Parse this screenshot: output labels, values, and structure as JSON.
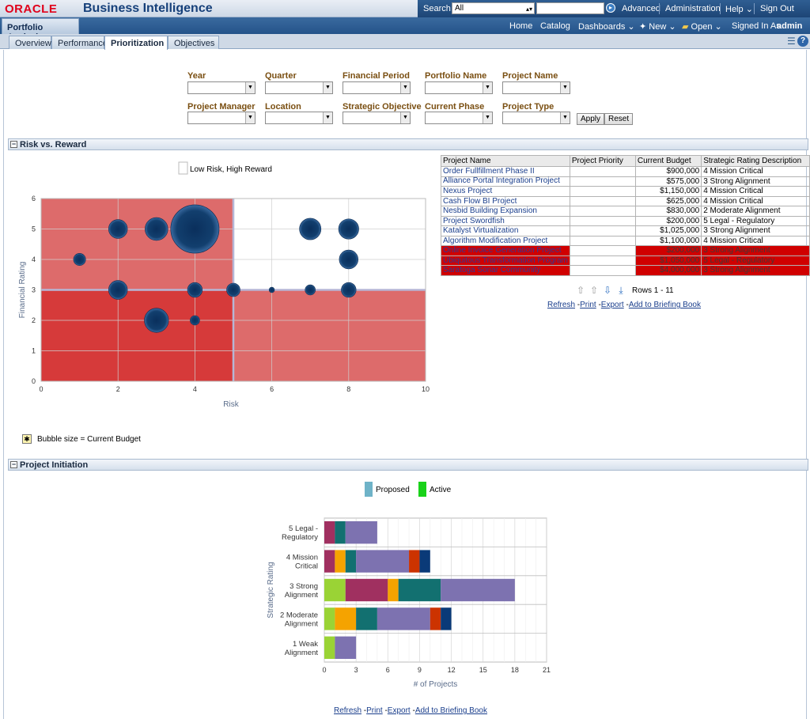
{
  "header": {
    "oracle_logo": "ORACLE",
    "app_title": "Business Intelligence",
    "search_label": "Search",
    "search_scope": "All",
    "search_value": "",
    "links": [
      "Advanced",
      "Administration",
      "Help",
      "Sign Out"
    ]
  },
  "navbar": {
    "dashboard_name": "Portfolio Analysis",
    "home": "Home",
    "catalog": "Catalog",
    "dashboards": "Dashboards",
    "new": "New",
    "open": "Open",
    "signed_in_as": "Signed In As",
    "user": "admin"
  },
  "tabs": [
    "Overview",
    "Performance",
    "Prioritization",
    "Objectives"
  ],
  "active_tab": "Prioritization",
  "prompts": {
    "row1": [
      "Year",
      "Quarter",
      "Financial Period",
      "Portfolio Name",
      "Project Name"
    ],
    "row2": [
      "Project Manager",
      "Location",
      "Strategic Objective",
      "Current Phase",
      "Project Type"
    ],
    "apply": "Apply",
    "reset": "Reset"
  },
  "section1": {
    "title": "Risk vs. Reward",
    "bubble_note": "Bubble size = Current Budget"
  },
  "section2": {
    "title": "Project Initiation"
  },
  "chart_data": [
    {
      "type": "scatter",
      "subtype": "bubble",
      "xlabel": "Risk",
      "ylabel": "Financial Rating",
      "xlim": [
        0,
        10
      ],
      "ylim": [
        0,
        6
      ],
      "xticks": [
        0,
        2,
        4,
        6,
        8,
        10
      ],
      "yticks": [
        0,
        1,
        2,
        3,
        4,
        5,
        6
      ],
      "legend": [
        {
          "name": "Low Risk, High Reward",
          "color": "#ffffff"
        }
      ],
      "quadrant_split": {
        "x": 5,
        "y": 3
      },
      "quadrant_colors": {
        "high_risk": "#dd6b6b",
        "low_risk_low_reward": "#d63a3a",
        "low_risk_high_reward": "#ffffff"
      },
      "bubble_color": "#123f6e",
      "points": [
        {
          "x": 2,
          "y": 5,
          "size": 0.7
        },
        {
          "x": 3,
          "y": 5,
          "size": 0.85
        },
        {
          "x": 4,
          "y": 5,
          "size": 1.8
        },
        {
          "x": 1,
          "y": 4,
          "size": 0.45
        },
        {
          "x": 2,
          "y": 3,
          "size": 0.7
        },
        {
          "x": 4,
          "y": 3,
          "size": 0.55
        },
        {
          "x": 5,
          "y": 3,
          "size": 0.5
        },
        {
          "x": 3,
          "y": 2,
          "size": 0.9
        },
        {
          "x": 4,
          "y": 2,
          "size": 0.35
        },
        {
          "x": 6,
          "y": 3,
          "size": 0.2
        },
        {
          "x": 7,
          "y": 3,
          "size": 0.38
        },
        {
          "x": 7,
          "y": 5,
          "size": 0.8
        },
        {
          "x": 8,
          "y": 5,
          "size": 0.75
        },
        {
          "x": 8,
          "y": 4,
          "size": 0.7
        },
        {
          "x": 8,
          "y": 3,
          "size": 0.55
        }
      ]
    },
    {
      "type": "bar",
      "orientation": "horizontal",
      "stacked": true,
      "xlabel": "# of Projects",
      "ylabel": "Strategic Rating",
      "xlim": [
        0,
        21
      ],
      "xticks": [
        0,
        3,
        6,
        9,
        12,
        15,
        18,
        21
      ],
      "legend": [
        {
          "name": "Proposed",
          "color": "#6fb3c8"
        },
        {
          "name": "Active",
          "color": "#19d219"
        }
      ],
      "categories": [
        "5 Legal - Regulatory",
        "4 Mission Critical",
        "3 Strong Alignment",
        "2 Moderate Alignment",
        "1 Weak Alignment"
      ],
      "segments": [
        [
          {
            "value": 1,
            "color": "#a03060"
          },
          {
            "value": 1,
            "color": "#127070"
          },
          {
            "value": 3,
            "color": "#7d72b0"
          }
        ],
        [
          {
            "value": 1,
            "color": "#a03060"
          },
          {
            "value": 1,
            "color": "#f5a300"
          },
          {
            "value": 1,
            "color": "#127070"
          },
          {
            "value": 5,
            "color": "#7d72b0"
          },
          {
            "value": 1,
            "color": "#cc3300"
          },
          {
            "value": 1,
            "color": "#0a3a78"
          }
        ],
        [
          {
            "value": 2,
            "color": "#9ad335"
          },
          {
            "value": 4,
            "color": "#a03060"
          },
          {
            "value": 1,
            "color": "#f5a300"
          },
          {
            "value": 4,
            "color": "#127070"
          },
          {
            "value": 7,
            "color": "#7d72b0"
          }
        ],
        [
          {
            "value": 1,
            "color": "#9ad335"
          },
          {
            "value": 2,
            "color": "#f5a300"
          },
          {
            "value": 2,
            "color": "#127070"
          },
          {
            "value": 5,
            "color": "#7d72b0"
          },
          {
            "value": 1,
            "color": "#cc3300"
          },
          {
            "value": 1,
            "color": "#0a3a78"
          }
        ],
        [
          {
            "value": 1,
            "color": "#9ad335"
          },
          {
            "value": 2,
            "color": "#7d72b0"
          }
        ]
      ]
    }
  ],
  "table": {
    "headers": [
      "Project Name",
      "Project Priority",
      "Current Budget",
      "Strategic Rating Description"
    ],
    "rows": [
      {
        "name": "Order Fullfillment Phase II",
        "priority": "",
        "budget": "$900,000",
        "rating": "4 Mission Critical",
        "highlight": false
      },
      {
        "name": "Alliance Portal Integration Project",
        "priority": "",
        "budget": "$575,000",
        "rating": "3 Strong Alignment",
        "highlight": false
      },
      {
        "name": "Nexus Project",
        "priority": "",
        "budget": "$1,150,000",
        "rating": "4 Mission Critical",
        "highlight": false
      },
      {
        "name": "Cash Flow BI Project",
        "priority": "",
        "budget": "$625,000",
        "rating": "4 Mission Critical",
        "highlight": false
      },
      {
        "name": "Nesbid Building Expansion",
        "priority": "",
        "budget": "$830,000",
        "rating": "2 Moderate Alignment",
        "highlight": false
      },
      {
        "name": "Project Swordfish",
        "priority": "",
        "budget": "$200,000",
        "rating": "5 Legal - Regulatory",
        "highlight": false
      },
      {
        "name": "Katalyst Virtualization",
        "priority": "",
        "budget": "$1,025,000",
        "rating": "3 Strong Alignment",
        "highlight": false
      },
      {
        "name": "Algorithm Modification Project",
        "priority": "",
        "budget": "$1,100,000",
        "rating": "4 Mission Critical",
        "highlight": false
      },
      {
        "name": "Online Invoice Generation Project",
        "priority": "",
        "budget": "$200,000",
        "rating": "3 Strong Alignment",
        "highlight": true
      },
      {
        "name": "Ubiquitous Transformation Program",
        "priority": "",
        "budget": "$1,050,000",
        "rating": "5 Legal - Regulatory",
        "highlight": true
      },
      {
        "name": "Saratoga Sonar Community",
        "priority": "",
        "budget": "$4,000,000",
        "rating": "3 Strong Alignment",
        "highlight": true
      }
    ],
    "rows_info": "Rows 1 - 11"
  },
  "report_links": [
    "Refresh",
    "Print",
    "Export",
    "Add to Briefing Book"
  ]
}
